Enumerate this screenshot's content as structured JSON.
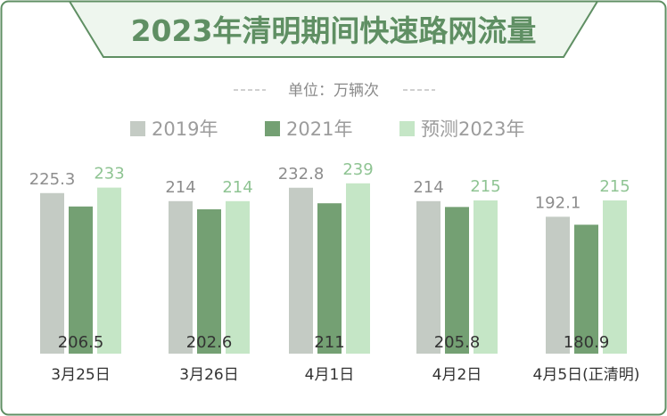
{
  "chart_data": {
    "type": "bar",
    "title": "2023年清明期间快速路网流量",
    "unit": "单位：万辆次",
    "categories": [
      "3月25日",
      "3月26日",
      "4月1日",
      "4月2日",
      "4月5日(正清明)"
    ],
    "series": [
      {
        "name": "2019年",
        "values": [
          225.3,
          214,
          232.8,
          214,
          192.1
        ],
        "color": "#c4cbc4"
      },
      {
        "name": "2021年",
        "values": [
          206.5,
          202.6,
          211,
          205.8,
          180.9
        ],
        "color": "#74a073"
      },
      {
        "name": "预测2023年",
        "values": [
          233,
          214,
          239,
          215,
          215
        ],
        "color": "#c5e6c6"
      }
    ],
    "label_colors": [
      "#8d8d8d",
      "#333333",
      "#8fc493"
    ],
    "ylim": [
      0,
      260
    ],
    "legend_position": "top-center",
    "grid": false
  },
  "style": {
    "frame_border": "#5f8f63",
    "title_bg": "#eef6ee"
  }
}
